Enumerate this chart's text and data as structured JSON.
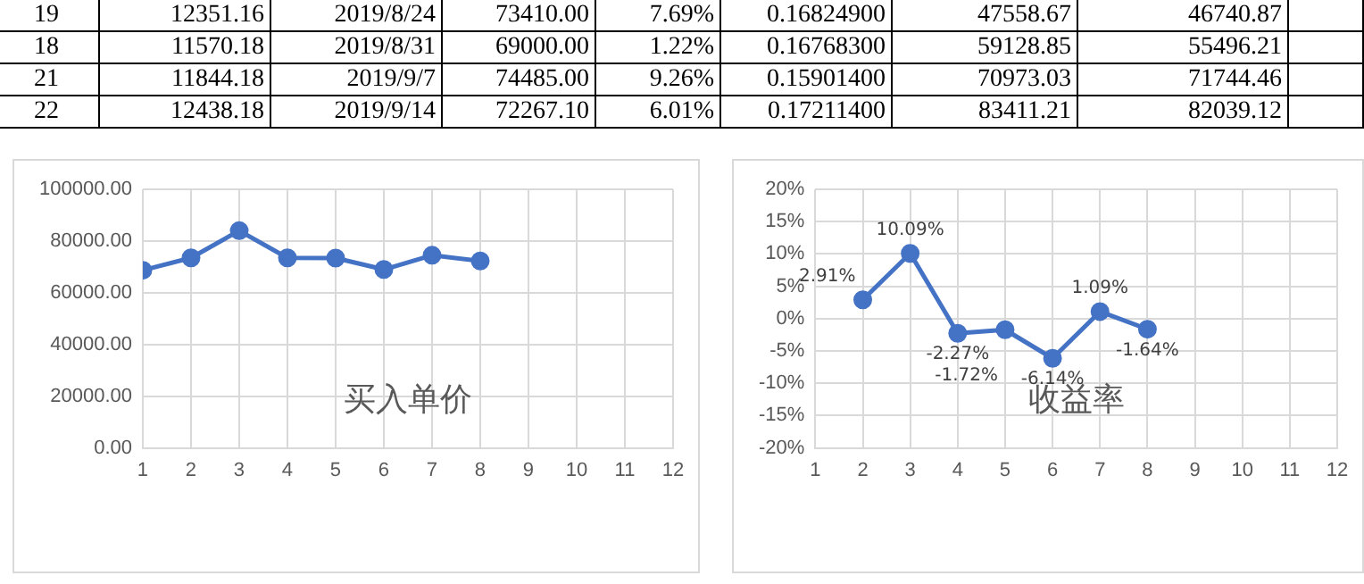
{
  "chart_data": [
    {
      "type": "other",
      "annotations": [
        "19",
        "12351.16",
        "2019/8/24",
        "73410.00",
        "7.69%",
        "0.16824900",
        "47558.67",
        "46740.87",
        "18",
        "11570.18",
        "2019/8/31",
        "69000.00",
        "1.22%",
        "0.16768300",
        "59128.85",
        "55496.21",
        "21",
        "11844.18",
        "2019/9/7",
        "74485.00",
        "9.26%",
        "0.15901400",
        "70973.03",
        "71744.46",
        "22",
        "12438.18",
        "2019/9/14",
        "72267.10",
        "6.01%",
        "0.17211400",
        "83411.21",
        "82039.12"
      ]
    },
    {
      "type": "line",
      "title": "买入单价",
      "x": [
        1,
        2,
        3,
        4,
        5,
        6,
        7,
        8
      ],
      "values": [
        68700,
        73500,
        84000,
        73500,
        73400,
        69000,
        74500,
        72300
      ],
      "color": "#4472c4",
      "marker": "circle",
      "grid": true,
      "xlim": [
        1,
        12
      ],
      "xticks": [
        1,
        2,
        3,
        4,
        5,
        6,
        7,
        8,
        9,
        10,
        11,
        12
      ],
      "ylim": [
        0,
        100000
      ],
      "yticks": [
        {
          "value": 0,
          "label": "0.00"
        },
        {
          "value": 20000,
          "label": "20000.00"
        },
        {
          "value": 40000,
          "label": "40000.00"
        },
        {
          "value": 60000,
          "label": "60000.00"
        },
        {
          "value": 80000,
          "label": "80000.00"
        },
        {
          "value": 100000,
          "label": "100000.00"
        }
      ]
    },
    {
      "type": "line",
      "title": "收益率",
      "x": [
        2,
        3,
        4,
        5,
        6,
        7,
        8
      ],
      "values": [
        2.91,
        10.09,
        -2.27,
        -1.72,
        -6.14,
        1.09,
        -1.64
      ],
      "color": "#4472c4",
      "marker": "circle",
      "grid": true,
      "value_labels": [
        "2.91%",
        "10.09%",
        "-2.27%",
        "-1.72%",
        "-6.14%",
        "1.09%",
        "-1.64%"
      ],
      "xlim": [
        1,
        12
      ],
      "xticks": [
        1,
        2,
        3,
        4,
        5,
        6,
        7,
        8,
        9,
        10,
        11,
        12
      ],
      "ylim": [
        -20,
        20
      ],
      "yticks": [
        {
          "value": -20,
          "label": "-20%"
        },
        {
          "value": -15,
          "label": "-15%"
        },
        {
          "value": -10,
          "label": "-10%"
        },
        {
          "value": -5,
          "label": "-5%"
        },
        {
          "value": 0,
          "label": "0%"
        },
        {
          "value": 5,
          "label": "5%"
        },
        {
          "value": 10,
          "label": "10%"
        },
        {
          "value": 15,
          "label": "15%"
        },
        {
          "value": 20,
          "label": "20%"
        }
      ]
    }
  ]
}
